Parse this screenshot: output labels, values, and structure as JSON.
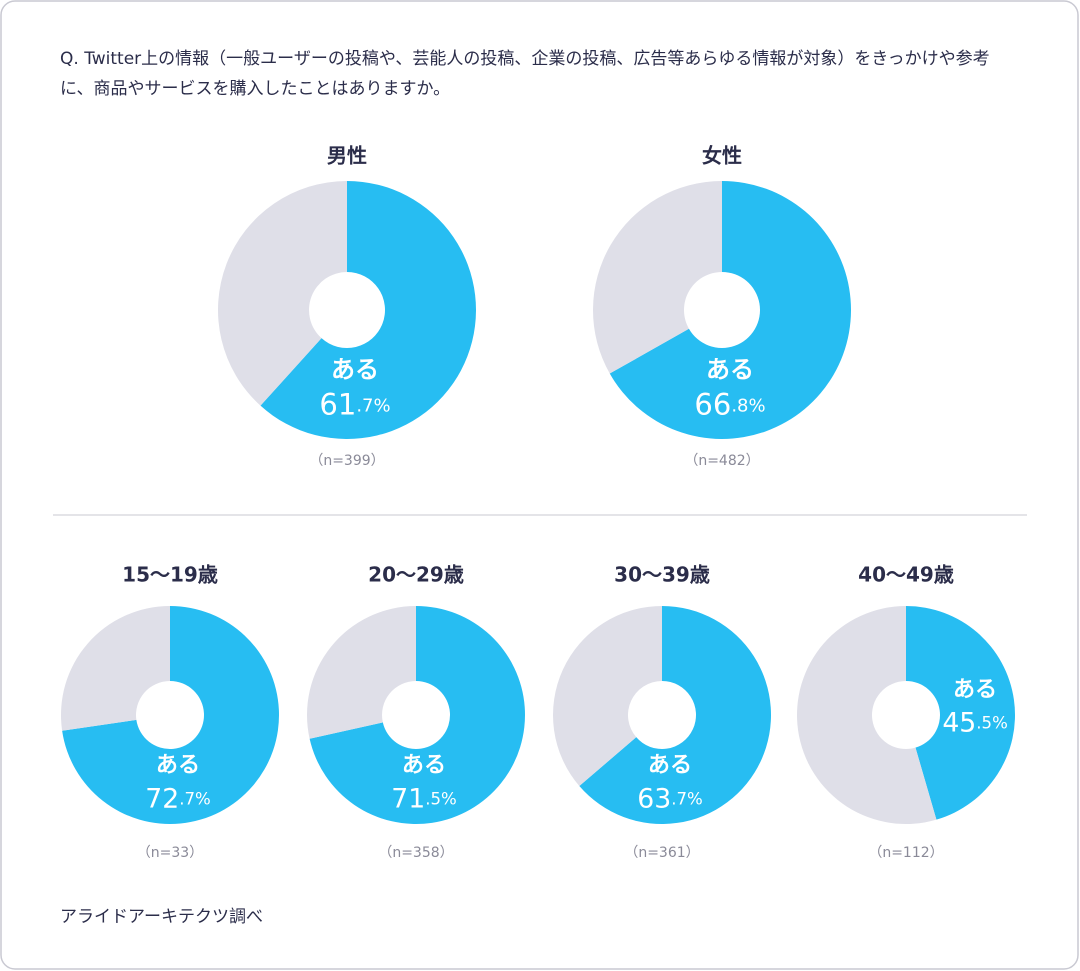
{
  "question": "Q. Twitter上の情報（一般ユーザーの投稿や、芸能人の投稿、企業の投稿、広告等あらゆる情報が対象）をきっかけや参考に、商品やサービスを購入したことはありますか。",
  "source": "アライドアーキテクツ調べ",
  "chart_data": [
    {
      "type": "pie",
      "title": "男性",
      "categories": [
        "ある",
        null
      ],
      "values": [
        61.7,
        38.3
      ],
      "value_labels": [
        "61.7%",
        null
      ],
      "colors": [
        "#27bdf2",
        "#dfdfe8"
      ],
      "note": "（n=399）"
    },
    {
      "type": "pie",
      "title": "女性",
      "categories": [
        "ある",
        null
      ],
      "values": [
        66.8,
        33.2
      ],
      "value_labels": [
        "66.8%",
        null
      ],
      "colors": [
        "#27bdf2",
        "#dfdfe8"
      ],
      "note": "（n=482）"
    },
    {
      "type": "pie",
      "title": "15〜19歳",
      "categories": [
        "ある",
        null
      ],
      "values": [
        72.7,
        27.3
      ],
      "value_labels": [
        "72.7%",
        null
      ],
      "colors": [
        "#27bdf2",
        "#dfdfe8"
      ],
      "note": "（n=33）"
    },
    {
      "type": "pie",
      "title": "20〜29歳",
      "categories": [
        "ある",
        null
      ],
      "values": [
        71.5,
        28.5
      ],
      "value_labels": [
        "71.5%",
        null
      ],
      "colors": [
        "#27bdf2",
        "#dfdfe8"
      ],
      "note": "（n=358）"
    },
    {
      "type": "pie",
      "title": "30〜39歳",
      "categories": [
        "ある",
        null
      ],
      "values": [
        63.7,
        36.3
      ],
      "value_labels": [
        "63.7%",
        null
      ],
      "colors": [
        "#27bdf2",
        "#dfdfe8"
      ],
      "note": "（n=361）"
    },
    {
      "type": "pie",
      "title": "40〜49歳",
      "categories": [
        "ある",
        null
      ],
      "values": [
        45.5,
        54.5
      ],
      "value_labels": [
        "45.5%",
        null
      ],
      "colors": [
        "#27bdf2",
        "#dfdfe8"
      ],
      "note": "（n=112）"
    }
  ]
}
